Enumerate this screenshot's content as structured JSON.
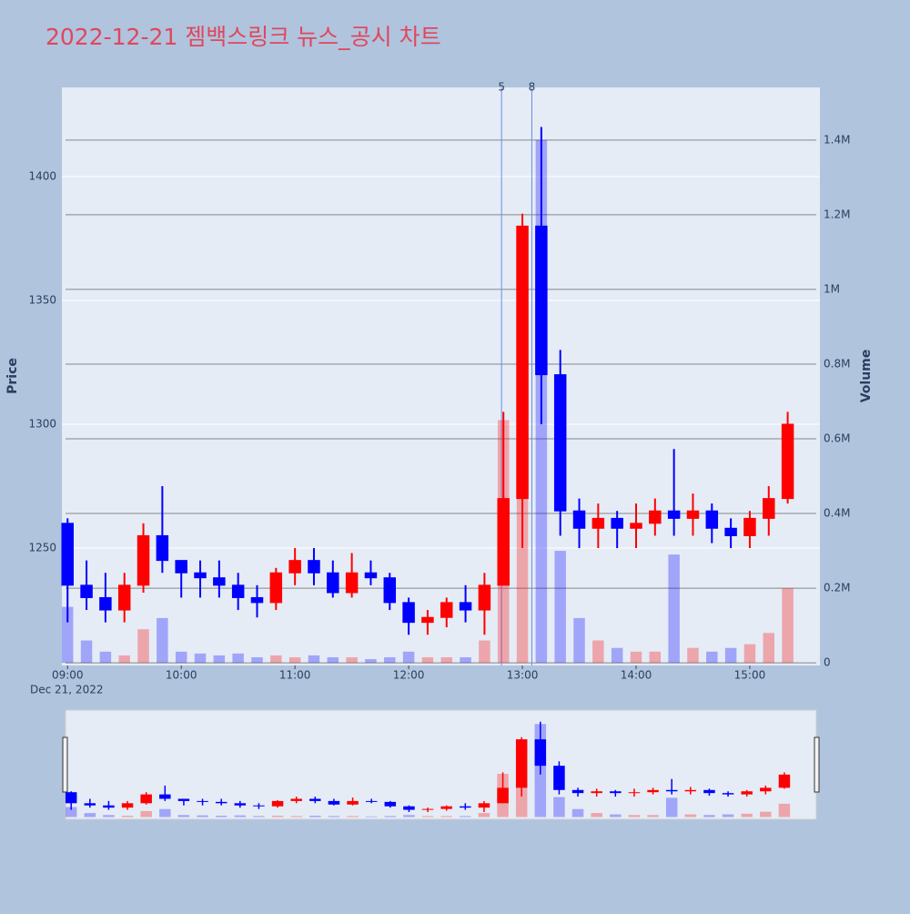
{
  "chart_data": {
    "type": "candlestick",
    "title": "2022-12-21 젬백스링크 뉴스_공시 차트",
    "title_color": "#e0475c",
    "ylabel": "Price",
    "y2label": "Volume",
    "increasing_color": "#ff0000",
    "decreasing_color": "#0000ff",
    "x": [
      "2022-12-21 09:00",
      "2022-12-21 09:10",
      "2022-12-21 09:20",
      "2022-12-21 09:30",
      "2022-12-21 09:40",
      "2022-12-21 09:50",
      "2022-12-21 10:00",
      "2022-12-21 10:10",
      "2022-12-21 10:20",
      "2022-12-21 10:30",
      "2022-12-21 10:40",
      "2022-12-21 10:50",
      "2022-12-21 11:00",
      "2022-12-21 11:10",
      "2022-12-21 11:20",
      "2022-12-21 11:30",
      "2022-12-21 11:40",
      "2022-12-21 11:50",
      "2022-12-21 12:00",
      "2022-12-21 12:10",
      "2022-12-21 12:20",
      "2022-12-21 12:30",
      "2022-12-21 12:40",
      "2022-12-21 12:50",
      "2022-12-21 13:00",
      "2022-12-21 13:10",
      "2022-12-21 13:20",
      "2022-12-21 13:30",
      "2022-12-21 13:40",
      "2022-12-21 13:50",
      "2022-12-21 14:00",
      "2022-12-21 14:10",
      "2022-12-21 14:20",
      "2022-12-21 14:30",
      "2022-12-21 14:40",
      "2022-12-21 14:50",
      "2022-12-21 15:00",
      "2022-12-21 15:10",
      "2022-12-21 15:20"
    ],
    "open": [
      1260,
      1235,
      1230,
      1225,
      1235,
      1255,
      1245,
      1240,
      1238,
      1235,
      1230,
      1228,
      1240,
      1245,
      1240,
      1232,
      1240,
      1238,
      1228,
      1220,
      1222,
      1228,
      1225,
      1235,
      1270,
      1380,
      1320,
      1265,
      1258,
      1262,
      1258,
      1260,
      1265,
      1262,
      1265,
      1258,
      1255,
      1262,
      1270
    ],
    "high": [
      1262,
      1245,
      1240,
      1240,
      1260,
      1275,
      1245,
      1245,
      1245,
      1240,
      1235,
      1242,
      1250,
      1250,
      1245,
      1248,
      1245,
      1240,
      1230,
      1225,
      1230,
      1235,
      1240,
      1305,
      1385,
      1420,
      1330,
      1270,
      1268,
      1265,
      1268,
      1270,
      1290,
      1272,
      1268,
      1262,
      1265,
      1275,
      1305
    ],
    "low": [
      1220,
      1225,
      1220,
      1220,
      1232,
      1240,
      1230,
      1230,
      1230,
      1225,
      1222,
      1225,
      1235,
      1235,
      1230,
      1230,
      1235,
      1225,
      1215,
      1215,
      1218,
      1220,
      1215,
      1235,
      1250,
      1300,
      1255,
      1250,
      1250,
      1250,
      1250,
      1255,
      1255,
      1255,
      1252,
      1250,
      1250,
      1255,
      1268
    ],
    "close": [
      1235,
      1230,
      1225,
      1235,
      1255,
      1245,
      1240,
      1238,
      1235,
      1230,
      1228,
      1240,
      1245,
      1240,
      1232,
      1240,
      1238,
      1228,
      1220,
      1222,
      1228,
      1225,
      1235,
      1270,
      1380,
      1320,
      1265,
      1258,
      1262,
      1258,
      1260,
      1265,
      1262,
      1265,
      1258,
      1255,
      1262,
      1270,
      1300
    ],
    "volume": [
      150000,
      60000,
      30000,
      20000,
      90000,
      120000,
      30000,
      25000,
      20000,
      25000,
      15000,
      20000,
      15000,
      20000,
      15000,
      15000,
      10000,
      15000,
      30000,
      15000,
      15000,
      15000,
      60000,
      650000,
      500000,
      1400000,
      300000,
      120000,
      60000,
      40000,
      30000,
      30000,
      290000,
      40000,
      30000,
      40000,
      50000,
      80000,
      200000
    ],
    "xlim": [
      "2022-12-21 08:57",
      "2022-12-21 15:37"
    ],
    "xticks": [
      {
        "value": "2022-12-21 09:00",
        "label": "09:00"
      },
      {
        "value": "2022-12-21 10:00",
        "label": "10:00"
      },
      {
        "value": "2022-12-21 11:00",
        "label": "11:00"
      },
      {
        "value": "2022-12-21 12:00",
        "label": "12:00"
      },
      {
        "value": "2022-12-21 13:00",
        "label": "13:00"
      },
      {
        "value": "2022-12-21 14:00",
        "label": "14:00"
      },
      {
        "value": "2022-12-21 15:00",
        "label": "15:00"
      }
    ],
    "xdate": "Dec 21, 2022",
    "ylim": [
      1202.6,
      1436
    ],
    "yticks": [
      1250,
      1300,
      1350,
      1400
    ],
    "y2lim": [
      -7000,
      1541000
    ],
    "y2ticks": [
      0,
      {
        "value": 200000,
        "label": "0.2M"
      },
      {
        "value": 400000,
        "label": "0.4M"
      },
      {
        "value": 600000,
        "label": "0.6M"
      },
      {
        "value": 800000,
        "label": "0.8M"
      },
      {
        "value": 1000000,
        "label": "1M"
      },
      {
        "value": 1200000,
        "label": "1.2M"
      },
      {
        "value": 1400000,
        "label": "1.4M"
      }
    ],
    "annotations": [
      {
        "x": "2022-12-21 12:49",
        "text": "5"
      },
      {
        "x": "2022-12-21 13:05",
        "text": "8"
      }
    ]
  }
}
